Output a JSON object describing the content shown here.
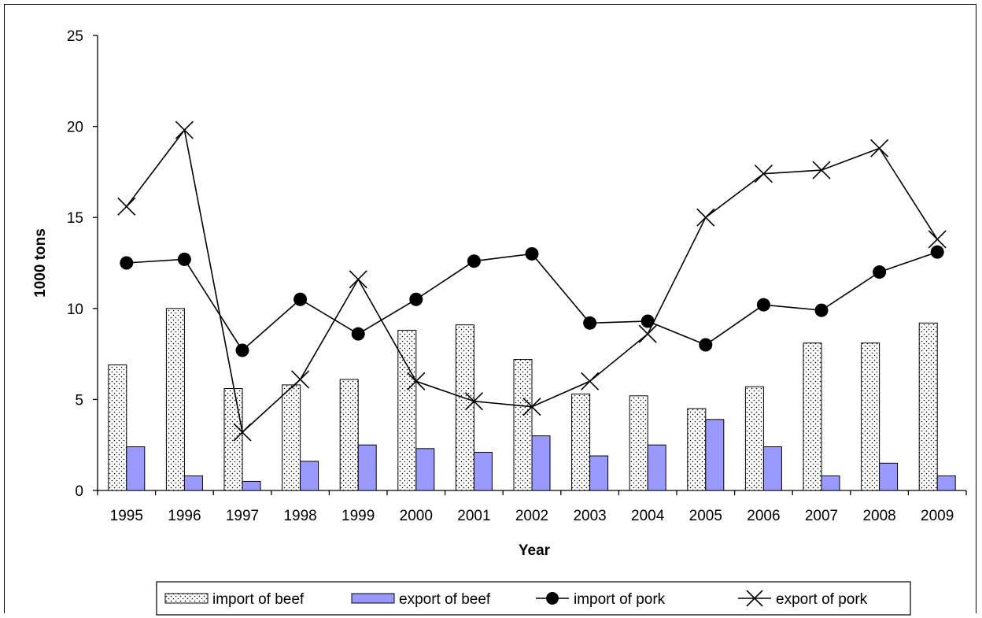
{
  "chart_data": {
    "type": "bar",
    "title": "",
    "xlabel": "Year",
    "ylabel": "1000 tons",
    "ylim": [
      0,
      25
    ],
    "yticks": [
      0,
      5,
      10,
      15,
      20,
      25
    ],
    "grid": false,
    "legend_position": "bottom",
    "categories": [
      "1995",
      "1996",
      "1997",
      "1998",
      "1999",
      "2000",
      "2001",
      "2002",
      "2003",
      "2004",
      "2005",
      "2006",
      "2007",
      "2008",
      "2009"
    ],
    "series": [
      {
        "name": "import of beef",
        "kind": "bar",
        "style": "dotted",
        "color": "#ffffff",
        "values": [
          6.9,
          10.0,
          5.6,
          5.8,
          6.1,
          8.8,
          9.1,
          7.2,
          5.3,
          5.2,
          4.5,
          5.7,
          8.1,
          8.1,
          9.2
        ]
      },
      {
        "name": "export of beef",
        "kind": "bar",
        "color": "#9999ff",
        "values": [
          2.4,
          0.8,
          0.5,
          1.6,
          2.5,
          2.3,
          2.1,
          3.0,
          1.9,
          2.5,
          3.9,
          2.4,
          0.8,
          1.5,
          0.8
        ]
      },
      {
        "name": "import of pork",
        "kind": "line",
        "marker": "circle",
        "color": "#000000",
        "values": [
          12.5,
          12.7,
          7.7,
          10.5,
          8.6,
          10.5,
          12.6,
          13.0,
          9.2,
          9.3,
          8.0,
          10.2,
          9.9,
          12.0,
          13.1
        ]
      },
      {
        "name": "export of pork",
        "kind": "line",
        "marker": "x",
        "color": "#000000",
        "values": [
          15.6,
          19.8,
          3.2,
          6.1,
          11.6,
          6.0,
          4.9,
          4.6,
          6.0,
          8.6,
          15.0,
          17.4,
          17.6,
          18.8,
          13.8
        ]
      }
    ]
  }
}
